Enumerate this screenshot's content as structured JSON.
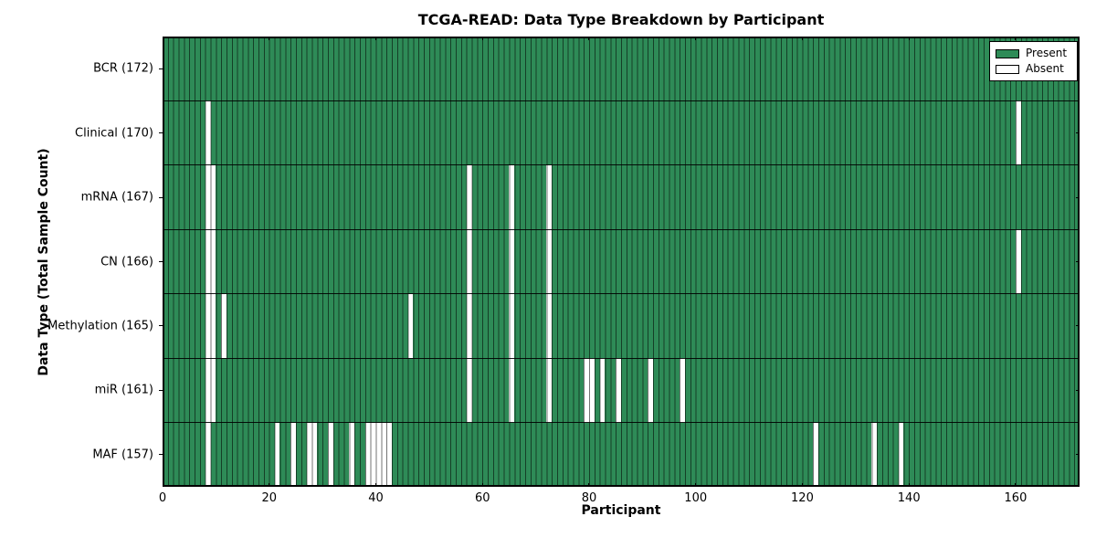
{
  "chart_data": {
    "type": "heatmap",
    "title": "TCGA-READ: Data Type Breakdown by Participant",
    "xlabel": "Participant",
    "ylabel": "Data Type (Total Sample Count)",
    "n_participants": 172,
    "x_ticks": [
      0,
      20,
      40,
      60,
      80,
      100,
      120,
      140,
      160
    ],
    "rows": [
      {
        "label": "BCR (172)",
        "total": 172,
        "absent": []
      },
      {
        "label": "Clinical (170)",
        "total": 170,
        "absent": [
          8,
          160
        ]
      },
      {
        "label": "mRNA (167)",
        "total": 167,
        "absent": [
          8,
          9,
          57,
          65,
          72
        ]
      },
      {
        "label": "CN (166)",
        "total": 166,
        "absent": [
          8,
          9,
          57,
          65,
          72,
          160
        ]
      },
      {
        "label": "Methylation (165)",
        "total": 165,
        "absent": [
          8,
          9,
          11,
          46,
          57,
          65,
          72
        ]
      },
      {
        "label": "miR (161)",
        "total": 161,
        "absent": [
          8,
          9,
          57,
          65,
          72,
          79,
          80,
          82,
          85,
          91,
          97
        ]
      },
      {
        "label": "MAF (157)",
        "total": 157,
        "absent": [
          8,
          21,
          24,
          27,
          28,
          31,
          35,
          38,
          39,
          40,
          41,
          42,
          122,
          133,
          138
        ]
      }
    ],
    "legend": [
      {
        "label": "Present",
        "color": "#2E8B57"
      },
      {
        "label": "Absent",
        "color": "#FFFFFF"
      }
    ],
    "colors": {
      "present": "#2E8B57",
      "absent": "#FFFFFF",
      "cell_edge": "rgba(0,0,0,0.55)",
      "grid": "#000000"
    },
    "legend_position": "upper right",
    "grid": "row-and-column-edges"
  }
}
